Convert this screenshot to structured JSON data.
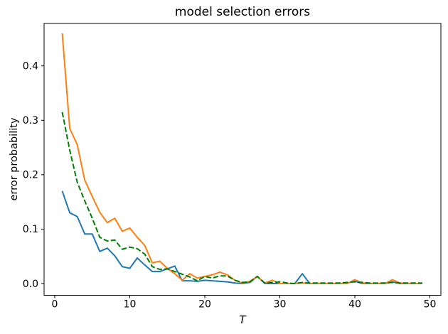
{
  "chart_data": {
    "type": "line",
    "title": "model selection errors",
    "xlabel": "T",
    "ylabel": "error probability",
    "grid": false,
    "legend": null,
    "xlim": [
      -1.42,
      51.47
    ],
    "ylim": [
      -0.0216,
      0.478
    ],
    "xticks": [
      0,
      10,
      20,
      30,
      40,
      50
    ],
    "xtick_labels": [
      "0",
      "10",
      "20",
      "30",
      "40",
      "50"
    ],
    "yticks": [
      0.0,
      0.1,
      0.2,
      0.3,
      0.4
    ],
    "ytick_labels": [
      "0.0",
      "0.1",
      "0.2",
      "0.3",
      "0.4"
    ],
    "x": [
      1,
      2,
      3,
      4,
      5,
      6,
      7,
      8,
      9,
      10,
      11,
      12,
      13,
      14,
      15,
      16,
      17,
      18,
      19,
      20,
      21,
      22,
      23,
      24,
      25,
      26,
      27,
      28,
      29,
      30,
      31,
      32,
      33,
      34,
      35,
      36,
      37,
      38,
      39,
      40,
      41,
      42,
      43,
      44,
      45,
      46,
      47,
      48,
      49
    ],
    "series": [
      {
        "name": "blue-solid",
        "color": "#1f77b4",
        "style": "solid",
        "values": [
          0.17,
          0.13,
          0.123,
          0.091,
          0.091,
          0.059,
          0.065,
          0.051,
          0.031,
          0.028,
          0.047,
          0.034,
          0.022,
          0.022,
          0.027,
          0.032,
          0.005,
          0.005,
          0.004,
          0.006,
          0.005,
          0.004,
          0.003,
          0.001,
          0.0,
          0.002,
          0.013,
          0.0,
          0.0,
          0.0,
          0.0,
          0.0,
          0.018,
          0.0,
          0.0,
          0.0,
          0.0,
          0.0,
          0.001,
          0.004,
          0.0,
          0.0,
          0.0,
          0.0,
          0.003,
          0.0,
          0.0,
          0.0,
          0.0
        ]
      },
      {
        "name": "orange-solid",
        "color": "#ff7f0e",
        "style": "solid",
        "values": [
          0.46,
          0.285,
          0.255,
          0.19,
          0.16,
          0.131,
          0.112,
          0.12,
          0.096,
          0.102,
          0.085,
          0.07,
          0.038,
          0.041,
          0.028,
          0.018,
          0.006,
          0.018,
          0.01,
          0.013,
          0.016,
          0.021,
          0.016,
          0.006,
          0.001,
          0.004,
          0.013,
          0.001,
          0.006,
          0.0,
          0.0,
          0.0,
          0.001,
          0.0,
          0.0,
          0.0,
          0.0,
          0.0,
          0.0,
          0.007,
          0.001,
          0.0,
          0.0,
          0.0,
          0.007,
          0.001,
          0.0,
          0.0,
          0.0
        ]
      },
      {
        "name": "green-dashed",
        "color": "#008000",
        "style": "dashed",
        "values": [
          0.315,
          0.245,
          0.186,
          0.152,
          0.12,
          0.085,
          0.078,
          0.08,
          0.063,
          0.067,
          0.064,
          0.054,
          0.031,
          0.026,
          0.027,
          0.022,
          0.017,
          0.012,
          0.005,
          0.013,
          0.01,
          0.014,
          0.014,
          0.006,
          0.002,
          0.003,
          0.013,
          0.001,
          0.002,
          0.003,
          0.001,
          0.0,
          0.002,
          0.001,
          0.001,
          0.001,
          0.001,
          0.001,
          0.002,
          0.003,
          0.002,
          0.001,
          0.001,
          0.001,
          0.002,
          0.001,
          0.001,
          0.001,
          0.001
        ]
      }
    ]
  }
}
